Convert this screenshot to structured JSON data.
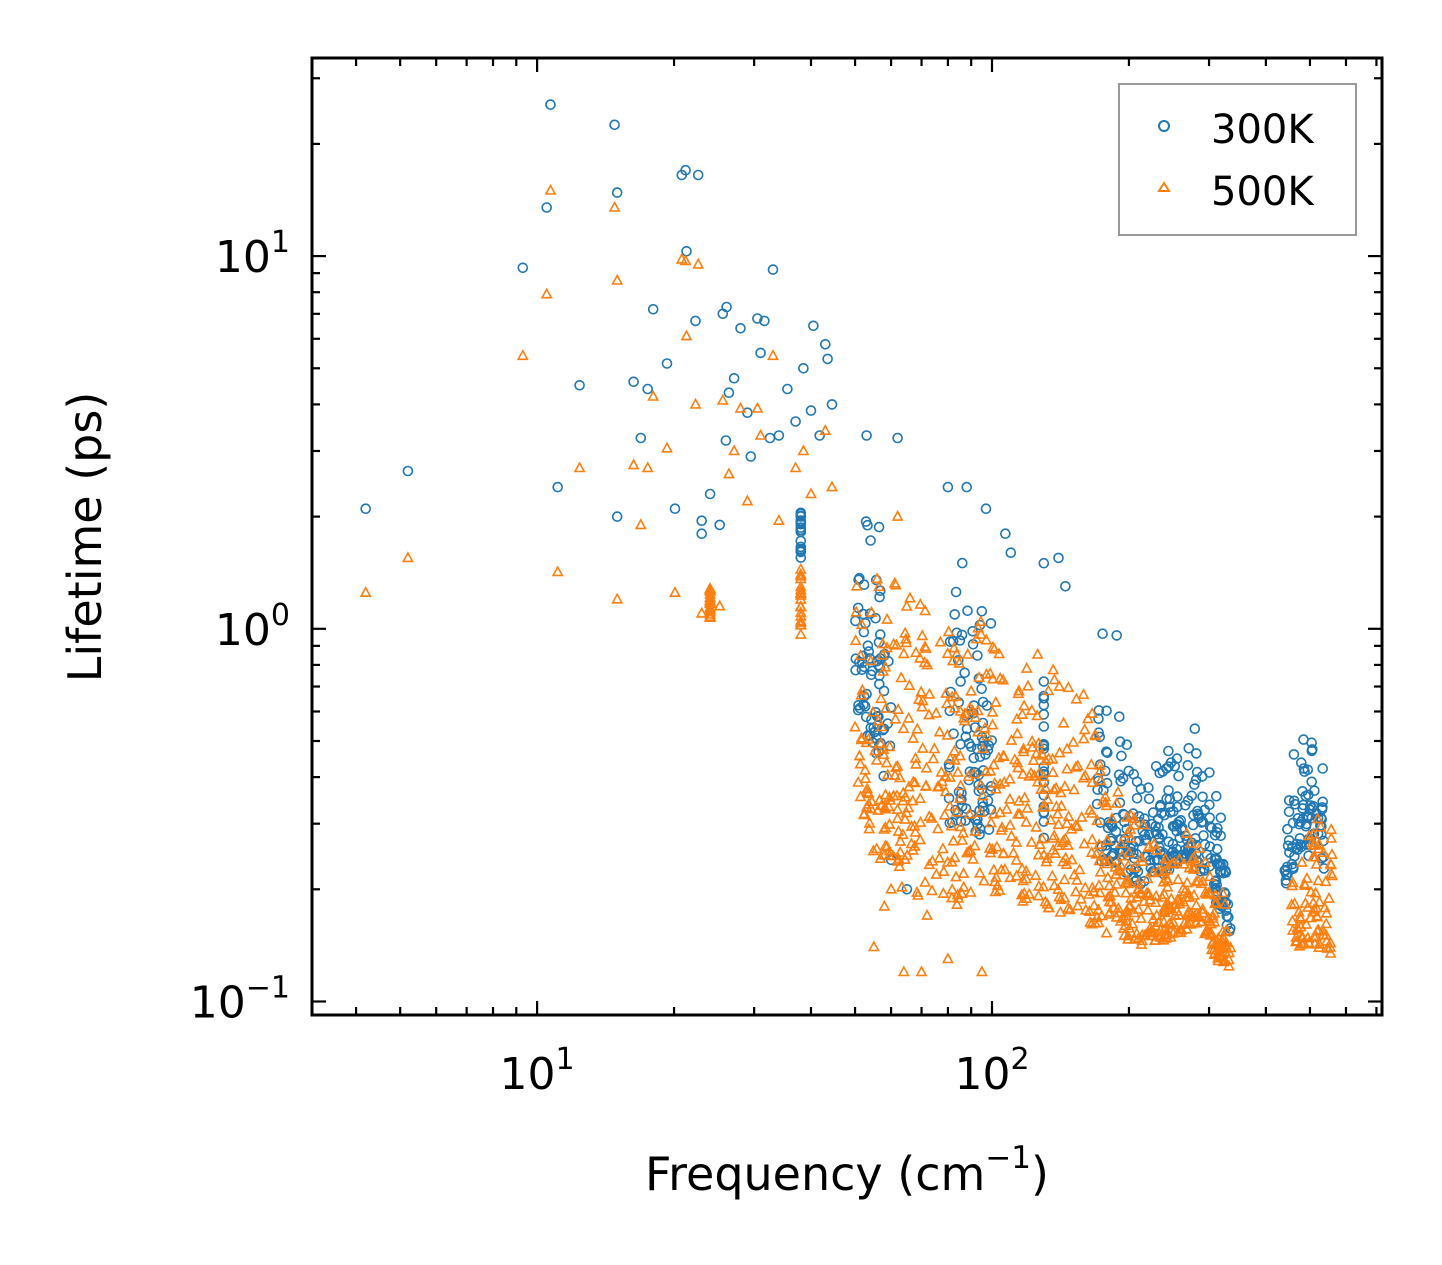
{
  "chart_data": {
    "type": "scatter",
    "title": "",
    "xlabel": "Frequency (cm",
    "xlabel_sup": "−1",
    "xlabel_tail": ")",
    "ylabel": "Lifetime (ps)",
    "xscale": "log",
    "yscale": "log",
    "xlim": [
      3.2,
      720
    ],
    "ylim": [
      0.092,
      34
    ],
    "x_ticks": [
      {
        "value": 10,
        "base": "10",
        "exp": "1"
      },
      {
        "value": 100,
        "base": "10",
        "exp": "2"
      }
    ],
    "y_ticks": [
      {
        "value": 0.1,
        "base": "10",
        "exp": "−1"
      },
      {
        "value": 1,
        "base": "10",
        "exp": "0"
      },
      {
        "value": 10,
        "base": "10",
        "exp": "1"
      }
    ],
    "legend_position": "top-right",
    "series": [
      {
        "name": "300K",
        "marker": "circle",
        "color": "#1f77b4",
        "outliers": [
          [
            4.2,
            2.1
          ],
          [
            5.2,
            2.65
          ],
          [
            9.3,
            9.3
          ],
          [
            10.5,
            13.5
          ],
          [
            10.7,
            25.5
          ],
          [
            11.1,
            2.4
          ],
          [
            12.4,
            4.5
          ],
          [
            14.8,
            22.5
          ],
          [
            15.0,
            14.8
          ],
          [
            15.0,
            2.0
          ],
          [
            16.3,
            4.6
          ],
          [
            16.9,
            3.25
          ],
          [
            17.5,
            4.4
          ],
          [
            18.0,
            7.2
          ],
          [
            19.3,
            5.15
          ],
          [
            20.1,
            2.1
          ],
          [
            20.8,
            16.5
          ],
          [
            21.2,
            17.0
          ],
          [
            21.3,
            10.3
          ],
          [
            22.3,
            6.7
          ],
          [
            22.6,
            16.5
          ],
          [
            23.0,
            1.95
          ],
          [
            23.0,
            1.8
          ],
          [
            24.0,
            2.3
          ],
          [
            25.2,
            1.9
          ],
          [
            25.6,
            7.0
          ],
          [
            26.1,
            7.3
          ],
          [
            26.4,
            4.3
          ],
          [
            26.0,
            3.2
          ],
          [
            27.1,
            4.7
          ],
          [
            28.0,
            6.4
          ],
          [
            29.0,
            3.8
          ],
          [
            29.5,
            2.9
          ],
          [
            30.5,
            6.8
          ],
          [
            31.0,
            5.5
          ],
          [
            31.6,
            6.7
          ],
          [
            32.5,
            3.25
          ],
          [
            33.0,
            9.2
          ],
          [
            34.0,
            3.3
          ],
          [
            35.5,
            4.4
          ],
          [
            37.0,
            3.6
          ],
          [
            38.5,
            5.0
          ],
          [
            40.0,
            3.85
          ],
          [
            40.5,
            6.5
          ],
          [
            41.8,
            3.3
          ],
          [
            43.0,
            5.8
          ],
          [
            43.5,
            5.3
          ],
          [
            44.5,
            4.0
          ],
          [
            53.0,
            3.3
          ],
          [
            62.0,
            3.25
          ],
          [
            80.0,
            2.4
          ],
          [
            88.0,
            2.4
          ],
          [
            97.0,
            2.1
          ],
          [
            107.0,
            1.8
          ],
          [
            110.0,
            1.6
          ],
          [
            130.0,
            1.5
          ],
          [
            140.0,
            1.55
          ],
          [
            145.0,
            1.3
          ],
          [
            175.0,
            0.97
          ],
          [
            188.0,
            0.96
          ],
          [
            56.0,
            0.55
          ],
          [
            60.0,
            0.24
          ],
          [
            65.0,
            0.2
          ]
        ],
        "bands": [
          [
            38,
            2.2,
            1.55,
            0.9
          ],
          [
            50,
            2.2,
            0.6,
            0.5
          ],
          [
            60,
            2.0,
            0.35,
            0.55
          ],
          [
            80,
            1.8,
            0.3,
            0.55
          ],
          [
            100,
            1.3,
            0.27,
            0.55
          ],
          [
            130,
            0.95,
            0.26,
            0.5
          ],
          [
            170,
            0.8,
            0.23,
            0.5
          ],
          [
            205,
            0.55,
            0.2,
            0.45
          ],
          [
            240,
            0.5,
            0.22,
            0.45
          ],
          [
            275,
            0.58,
            0.24,
            0.4
          ],
          [
            300,
            0.5,
            0.2,
            0.4
          ],
          [
            335,
            0.25,
            0.15,
            0.3
          ],
          [
            440,
            0.3,
            0.2,
            0.5
          ],
          [
            480,
            0.62,
            0.25,
            0.6
          ],
          [
            540,
            0.55,
            0.22,
            0.5
          ]
        ]
      },
      {
        "name": "500K",
        "marker": "triangle",
        "color": "#ff7f0e",
        "outliers": [
          [
            4.2,
            1.25
          ],
          [
            5.2,
            1.55
          ],
          [
            9.3,
            5.4
          ],
          [
            10.5,
            7.9
          ],
          [
            10.7,
            15.0
          ],
          [
            11.1,
            1.42
          ],
          [
            12.4,
            2.7
          ],
          [
            14.8,
            13.5
          ],
          [
            15.0,
            8.6
          ],
          [
            15.0,
            1.2
          ],
          [
            16.3,
            2.75
          ],
          [
            16.9,
            1.9
          ],
          [
            17.5,
            2.7
          ],
          [
            18.0,
            4.2
          ],
          [
            19.3,
            3.05
          ],
          [
            20.1,
            1.25
          ],
          [
            20.8,
            9.8
          ],
          [
            21.2,
            9.7
          ],
          [
            21.3,
            6.1
          ],
          [
            22.3,
            4.0
          ],
          [
            22.6,
            9.5
          ],
          [
            23.0,
            1.1
          ],
          [
            25.2,
            1.15
          ],
          [
            25.6,
            4.1
          ],
          [
            26.4,
            2.6
          ],
          [
            27.1,
            3.0
          ],
          [
            28.0,
            3.9
          ],
          [
            29.0,
            2.2
          ],
          [
            30.5,
            3.9
          ],
          [
            31.0,
            3.3
          ],
          [
            33.0,
            5.4
          ],
          [
            34.0,
            1.95
          ],
          [
            37.0,
            2.7
          ],
          [
            38.5,
            3.0
          ],
          [
            40.0,
            2.3
          ],
          [
            43.0,
            3.4
          ],
          [
            44.5,
            2.4
          ],
          [
            62.0,
            2.0
          ],
          [
            55.0,
            0.14
          ],
          [
            58.0,
            0.18
          ],
          [
            60.0,
            0.2
          ],
          [
            64.0,
            0.12
          ],
          [
            70.0,
            0.12
          ],
          [
            80.0,
            0.13
          ],
          [
            95.0,
            0.12
          ],
          [
            72.0,
            0.17
          ]
        ],
        "bands": [
          [
            24,
            1.3,
            1.05,
            0.9
          ],
          [
            38,
            1.45,
            0.95,
            0.9
          ],
          [
            50,
            1.5,
            0.3,
            0.6
          ],
          [
            60,
            1.35,
            0.2,
            0.75
          ],
          [
            70,
            1.3,
            0.19,
            0.75
          ],
          [
            85,
            1.2,
            0.18,
            0.75
          ],
          [
            105,
            1.0,
            0.19,
            0.75
          ],
          [
            130,
            0.85,
            0.18,
            0.65
          ],
          [
            160,
            0.7,
            0.16,
            0.55
          ],
          [
            185,
            0.45,
            0.15,
            0.45
          ],
          [
            220,
            0.33,
            0.14,
            0.4
          ],
          [
            255,
            0.28,
            0.15,
            0.4
          ],
          [
            285,
            0.35,
            0.16,
            0.4
          ],
          [
            310,
            0.25,
            0.13,
            0.35
          ],
          [
            335,
            0.17,
            0.12,
            0.3
          ],
          [
            455,
            0.35,
            0.14,
            0.4
          ],
          [
            510,
            0.38,
            0.14,
            0.6
          ],
          [
            560,
            0.3,
            0.13,
            0.5
          ]
        ]
      }
    ]
  }
}
